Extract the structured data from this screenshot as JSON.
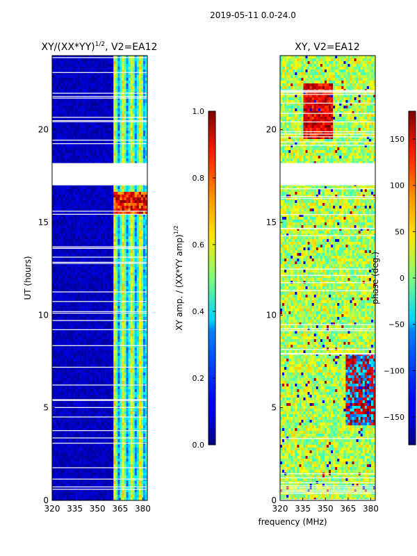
{
  "chart_data": [
    {
      "type": "heatmap",
      "figure_title": "2019-05-11 0.0-24.0",
      "title": "XY/(XX*YY)^1/2, V2=EA12",
      "title_base": "XY/(XX*YY)",
      "title_exp": "1/2",
      "title_tail": ", V2=EA12",
      "xlabel": "",
      "ylabel": "UT (hours)",
      "xlim": [
        320,
        383
      ],
      "ylim": [
        0,
        24
      ],
      "x_ticks": [
        320,
        335,
        350,
        365,
        380
      ],
      "y_ticks": [
        0,
        5,
        10,
        15,
        20
      ],
      "colorbar": {
        "label": "XY amp. / (XX*YY amp)^1/2",
        "label_base": "XY amp. / (XX*YY amp)",
        "label_exp": "1/2",
        "range": [
          0.0,
          1.0
        ],
        "ticks": [
          "0.0",
          "0.2",
          "0.4",
          "0.6",
          "0.8",
          "1.0"
        ],
        "colormap": "jet"
      },
      "gaps_hours": [
        [
          17.0,
          18.2
        ]
      ],
      "note": "Low amplitude (~0.0-0.1) below ~360 MHz; moderate (~0.3-0.6) at 360-383 MHz; high (~0.8-1.0) near 15.5-16.5 h"
    },
    {
      "type": "heatmap",
      "title": "XY, V2=EA12",
      "xlabel": "frequency (MHz)",
      "ylabel": "",
      "xlim": [
        320,
        383
      ],
      "ylim": [
        0,
        24
      ],
      "x_ticks": [
        320,
        335,
        350,
        365,
        380
      ],
      "y_ticks": [
        0,
        5,
        10,
        15,
        20
      ],
      "colorbar": {
        "label": "phase (deg.)",
        "range": [
          -180,
          180
        ],
        "ticks": [
          "-150",
          "-100",
          "-50",
          "0",
          "50",
          "100",
          "150"
        ],
        "colormap": "jet"
      },
      "gaps_hours": [
        [
          17.0,
          18.2
        ]
      ],
      "note": "Phase mostly ~0 to 50 deg with red/blue patches, red region ~20-22 h near 340-350 MHz"
    }
  ],
  "colors": {
    "jet_low": "#00007f",
    "jet_high": "#7f0000"
  }
}
